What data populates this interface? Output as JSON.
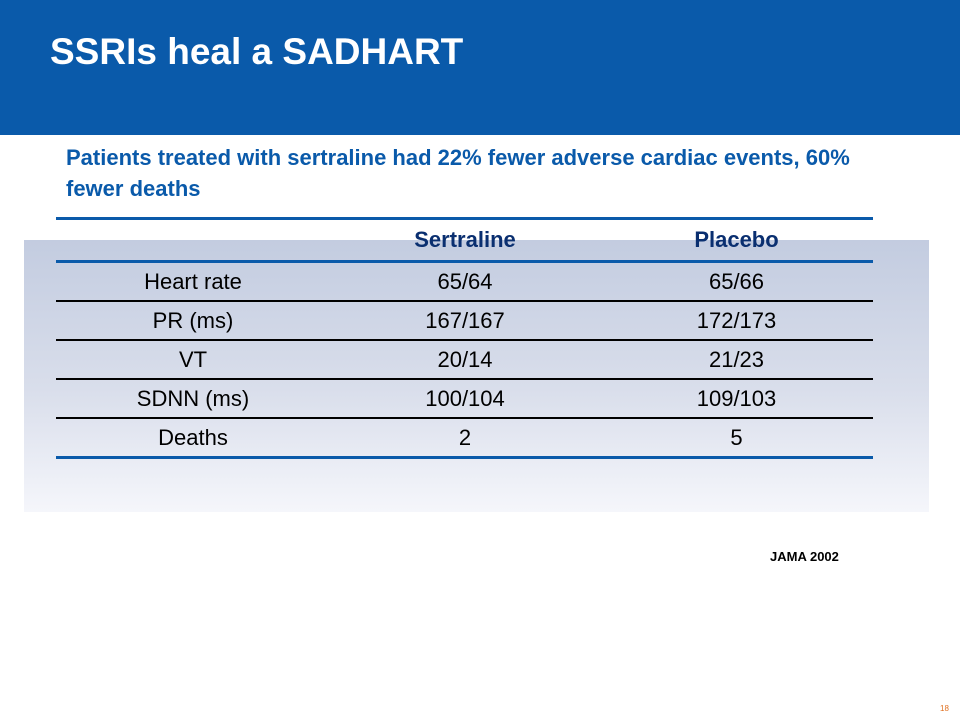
{
  "slide": {
    "title": "SSRIs heal a SADHART",
    "subtitle": "Patients treated with sertraline had 22% fewer adverse cardiac events, 60% fewer deaths",
    "source": "JAMA 2002",
    "page_number": "18"
  },
  "table": {
    "headers": [
      "",
      "Sertraline",
      "Placebo"
    ],
    "rows": [
      [
        "Heart rate",
        "65/64",
        "65/66"
      ],
      [
        "PR (ms)",
        "167/167",
        "172/173"
      ],
      [
        "VT",
        "20/14",
        "21/23"
      ],
      [
        "SDNN (ms)",
        "100/104",
        "109/103"
      ],
      [
        "Deaths",
        "2",
        "5"
      ]
    ]
  },
  "colors": {
    "brand_blue": "#0a5aaa",
    "header_text": "#0a2f70",
    "page_number": "#e07020"
  }
}
